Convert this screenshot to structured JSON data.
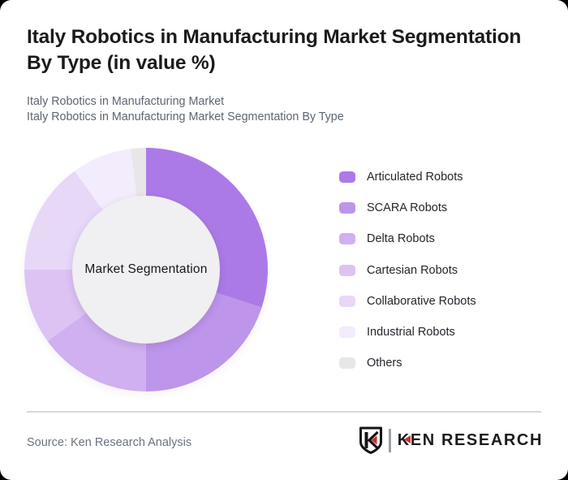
{
  "card": {
    "title_lines": [
      "Italy Robotics in Manufacturing Market Segmentation",
      "By Type (in value %)"
    ],
    "subtitle_line1": "Italy Robotics in Manufacturing Market",
    "subtitle_line2": "Italy Robotics in Manufacturing Market Segmentation By Type"
  },
  "chart_data": {
    "type": "pie",
    "variant": "donut",
    "center_label": "Market Segmentation",
    "legend_position": "right",
    "start_angle_deg": 0,
    "direction": "clockwise",
    "segments": [
      {
        "label": "Articulated Robots",
        "value_pct": 30,
        "color": "#ac7ae7"
      },
      {
        "label": "SCARA Robots",
        "value_pct": 20,
        "color": "#bd95eb"
      },
      {
        "label": "Delta Robots",
        "value_pct": 15,
        "color": "#d0b0f0"
      },
      {
        "label": "Cartesian Robots",
        "value_pct": 10,
        "color": "#dcc3f4"
      },
      {
        "label": "Collaborative Robots",
        "value_pct": 15,
        "color": "#e7d8f8"
      },
      {
        "label": "Industrial Robots",
        "value_pct": 8,
        "color": "#f3ecfc"
      },
      {
        "label": "Others",
        "value_pct": 2,
        "color": "#e8e6e9"
      }
    ]
  },
  "footer": {
    "source": "Source: Ken Research Analysis",
    "logo_text_k": "K",
    "logo_text_rest": "EN RESEARCH"
  },
  "colors": {
    "page_bg": "#000000",
    "card_bg": "#ffffff",
    "donut_hole_bg": "#f0eff1",
    "divider": "#d8d8db",
    "title_text": "#1b1b1d",
    "subtitle_text": "#5c6570",
    "legend_text": "#23262b",
    "source_text": "#6a7280",
    "logo_black": "#1b1c1e",
    "logo_red": "#c4342d"
  }
}
